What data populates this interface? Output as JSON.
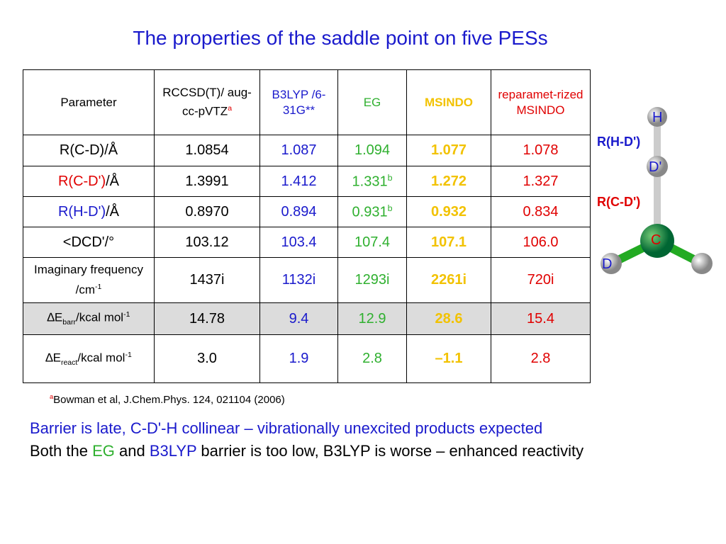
{
  "title": "The properties of the saddle point on five PESs",
  "table": {
    "columns": [
      {
        "color": "#000000",
        "bold": false,
        "header": [
          {
            "text": "Parameter"
          }
        ]
      },
      {
        "color": "#000000",
        "bold": false,
        "header": [
          {
            "text": "RCCSD(T)/ aug-cc-pVTZ"
          },
          {
            "text": "a",
            "sup": true,
            "color": "#e00000"
          }
        ]
      },
      {
        "color": "#1a1acc",
        "bold": false,
        "header": [
          {
            "text": "B3LYP /6-31G**"
          }
        ]
      },
      {
        "color": "#2fb02f",
        "bold": false,
        "header": [
          {
            "text": "EG"
          }
        ]
      },
      {
        "color": "#f2c200",
        "bold": true,
        "header": [
          {
            "text": "MSINDO"
          }
        ]
      },
      {
        "color": "#e00000",
        "bold": false,
        "header": [
          {
            "text": "reparamet-rized MSINDO"
          }
        ]
      }
    ],
    "rows": [
      {
        "shade": false,
        "cells": [
          [
            {
              "text": "R(C-D)/Å"
            }
          ],
          [
            {
              "text": "1.0854"
            }
          ],
          [
            {
              "text": "1.087"
            }
          ],
          [
            {
              "text": "1.094"
            }
          ],
          [
            {
              "text": "1.077"
            }
          ],
          [
            {
              "text": "1.078"
            }
          ]
        ]
      },
      {
        "shade": false,
        "cells": [
          [
            {
              "text": "R(C-D')",
              "color": "#e00000"
            },
            {
              "text": "/Å"
            }
          ],
          [
            {
              "text": "1.3991"
            }
          ],
          [
            {
              "text": "1.412"
            }
          ],
          [
            {
              "text": "1.331"
            },
            {
              "text": "b",
              "sup": true
            }
          ],
          [
            {
              "text": "1.272"
            }
          ],
          [
            {
              "text": "1.327"
            }
          ]
        ]
      },
      {
        "shade": false,
        "cells": [
          [
            {
              "text": "R(H-D')",
              "color": "#1a1acc"
            },
            {
              "text": "/Å"
            }
          ],
          [
            {
              "text": "0.8970"
            }
          ],
          [
            {
              "text": "0.894"
            }
          ],
          [
            {
              "text": "0.931"
            },
            {
              "text": "b",
              "sup": true
            }
          ],
          [
            {
              "text": "0.932"
            }
          ],
          [
            {
              "text": "0.834"
            }
          ]
        ]
      },
      {
        "shade": false,
        "cells": [
          [
            {
              "text": "<DCD'/°"
            }
          ],
          [
            {
              "text": "103.12"
            }
          ],
          [
            {
              "text": "103.4"
            }
          ],
          [
            {
              "text": "107.4"
            }
          ],
          [
            {
              "text": "107.1"
            }
          ],
          [
            {
              "text": "106.0"
            }
          ]
        ]
      },
      {
        "shade": false,
        "cells": [
          [
            {
              "text": "Imaginary frequency /cm"
            },
            {
              "text": "-1",
              "sup": true
            }
          ],
          [
            {
              "text": "1437i"
            }
          ],
          [
            {
              "text": "1132i"
            }
          ],
          [
            {
              "text": "1293i"
            }
          ],
          [
            {
              "text": "2261i"
            }
          ],
          [
            {
              "text": "720i"
            }
          ]
        ]
      },
      {
        "shade": true,
        "cells": [
          [
            {
              "text": "∆E"
            },
            {
              "text": "barr",
              "sub": true
            },
            {
              "text": "/kcal mol"
            },
            {
              "text": "-1",
              "sup": true
            }
          ],
          [
            {
              "text": "14.78"
            }
          ],
          [
            {
              "text": "9.4"
            }
          ],
          [
            {
              "text": "12.9"
            }
          ],
          [
            {
              "text": "28.6"
            }
          ],
          [
            {
              "text": "15.4"
            }
          ]
        ]
      },
      {
        "shade": false,
        "cells": [
          [
            {
              "text": "∆E"
            },
            {
              "text": "react",
              "sub": true
            },
            {
              "text": "/kcal mol"
            },
            {
              "text": "-1",
              "sup": true
            }
          ],
          [
            {
              "text": "3.0"
            }
          ],
          [
            {
              "text": "1.9"
            }
          ],
          [
            {
              "text": "2.8"
            }
          ],
          [
            {
              "text": "–1.1"
            }
          ],
          [
            {
              "text": "2.8"
            }
          ]
        ]
      }
    ]
  },
  "footnote": [
    {
      "text": "a",
      "sup": true,
      "color": "#e00000"
    },
    {
      "text": "Bowman et al, J.Chem.Phys. 124, 021104 (2006)"
    }
  ],
  "bullets": [
    [
      {
        "text": "Barrier is late, C-D'-H collinear – vibrationally unexcited products expected",
        "color": "#1a1acc"
      }
    ],
    [
      {
        "text": "Both the "
      },
      {
        "text": "EG",
        "color": "#2fb02f"
      },
      {
        "text": " and "
      },
      {
        "text": "B3LYP",
        "color": "#1a1acc"
      },
      {
        "text": " barrier is too low, B3LYP is worse – enhanced reactivity"
      }
    ]
  ],
  "molecule": {
    "atoms": [
      "H",
      "D'",
      "C",
      "D"
    ],
    "distances": [
      "R(H-D')",
      "R(C-D')"
    ]
  }
}
